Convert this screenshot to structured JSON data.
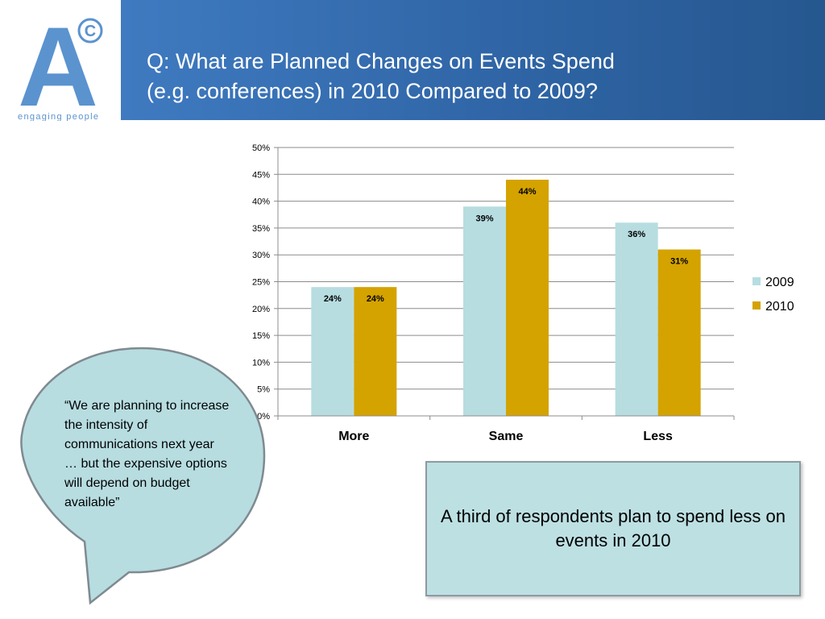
{
  "logo": {
    "letter": "A",
    "mark": "©",
    "tagline": "engaging people",
    "color": "#5b93cf"
  },
  "header": {
    "title_line1": "Q: What are Planned Changes on Events Spend",
    "title_line2": "(e.g. conferences) in 2010 Compared to 2009?"
  },
  "chart_data": {
    "type": "bar",
    "categories": [
      "More",
      "Same",
      "Less"
    ],
    "series": [
      {
        "name": "2009",
        "values": [
          24,
          39,
          36
        ],
        "labels": [
          "24%",
          "39%",
          "36%"
        ],
        "color": "#b7dde1"
      },
      {
        "name": "2010",
        "values": [
          24,
          44,
          31
        ],
        "labels": [
          "24%",
          "44%",
          "31%"
        ],
        "color": "#d4a300"
      }
    ],
    "ylim": [
      0,
      50
    ],
    "yticks": [
      0,
      5,
      10,
      15,
      20,
      25,
      30,
      35,
      40,
      45,
      50
    ],
    "ytick_labels": [
      "0%",
      "5%",
      "10%",
      "15%",
      "20%",
      "25%",
      "30%",
      "35%",
      "40%",
      "45%",
      "50%"
    ],
    "grid": true,
    "legend_position": "right"
  },
  "quote": {
    "text": "“We are planning to increase the intensity of communications next year … but the expensive options will depend on budget available”",
    "bubble_color": "#b7dde1",
    "border_color": "#7f8a90"
  },
  "callout": {
    "text": "A third of respondents plan to spend less on events in 2010"
  }
}
